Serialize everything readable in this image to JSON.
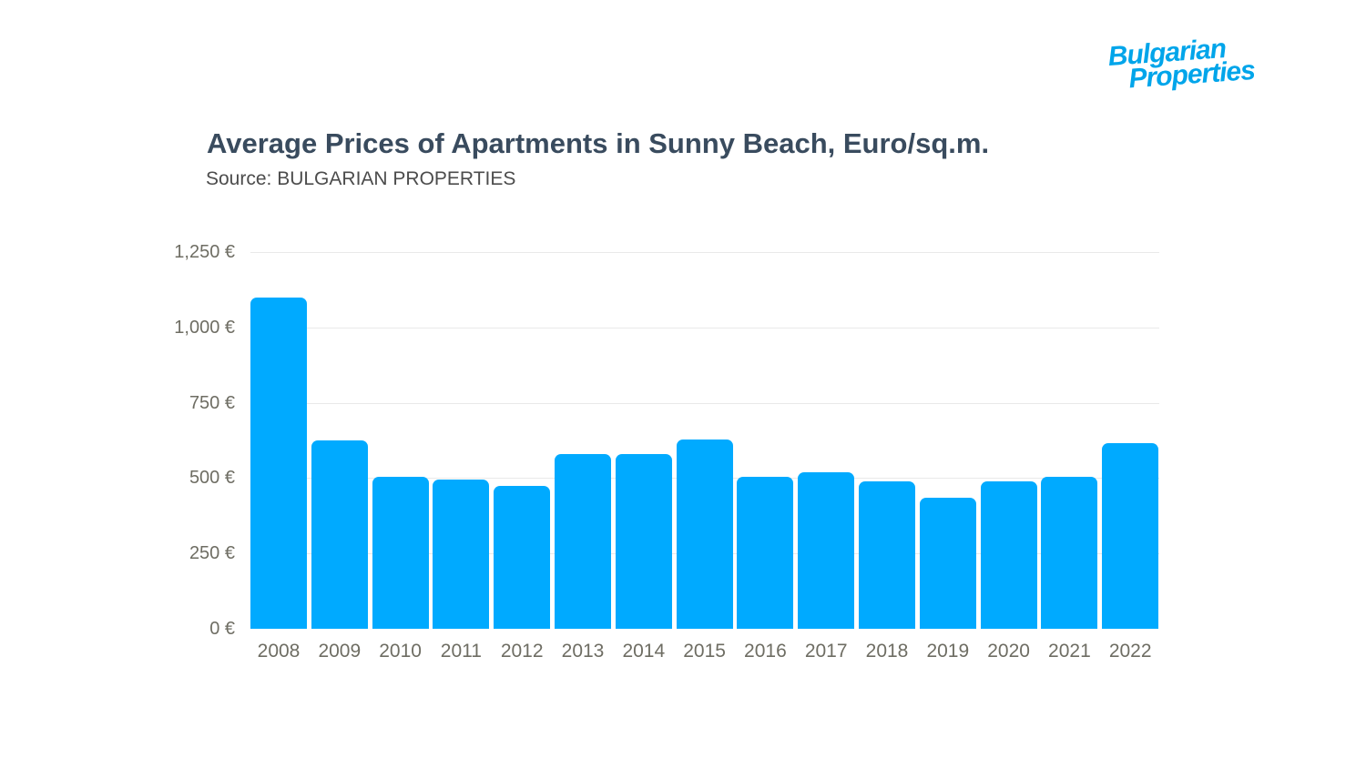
{
  "logo": {
    "line1": "Bulgarian",
    "line2": "Properties"
  },
  "header": {
    "title": "Average Prices of Apartments in Sunny Beach, Euro/sq.m.",
    "source": "Source: BULGARIAN PROPERTIES"
  },
  "colors": {
    "bar": "#00aaff",
    "logo_blue": "#00a5ea",
    "title_text": "#394b5e",
    "subtitle_text": "#4c4c4c",
    "axis_text": "#6e6d63",
    "gridline": "#e9e9e9"
  },
  "chart_data": {
    "type": "bar",
    "title": "Average Prices of Apartments in Sunny Beach, Euro/sq.m.",
    "subtitle": "Source: BULGARIAN PROPERTIES",
    "unit": "EUR per sq.m.",
    "categories": [
      "2008",
      "2009",
      "2010",
      "2011",
      "2012",
      "2013",
      "2014",
      "2015",
      "2016",
      "2017",
      "2018",
      "2019",
      "2020",
      "2021",
      "2022"
    ],
    "values": [
      1100,
      625,
      505,
      495,
      475,
      580,
      580,
      627,
      505,
      520,
      490,
      435,
      488,
      505,
      615
    ],
    "xlabel": "",
    "ylabel": "",
    "ylim": [
      0,
      1250
    ],
    "y_ticks": [
      {
        "value": 0,
        "label": "0 €"
      },
      {
        "value": 250,
        "label": "250 €"
      },
      {
        "value": 500,
        "label": "500 €"
      },
      {
        "value": 750,
        "label": "750 €"
      },
      {
        "value": 1000,
        "label": "1,000 €"
      },
      {
        "value": 1250,
        "label": "1,250 €"
      }
    ],
    "grid": true,
    "legend": false
  }
}
